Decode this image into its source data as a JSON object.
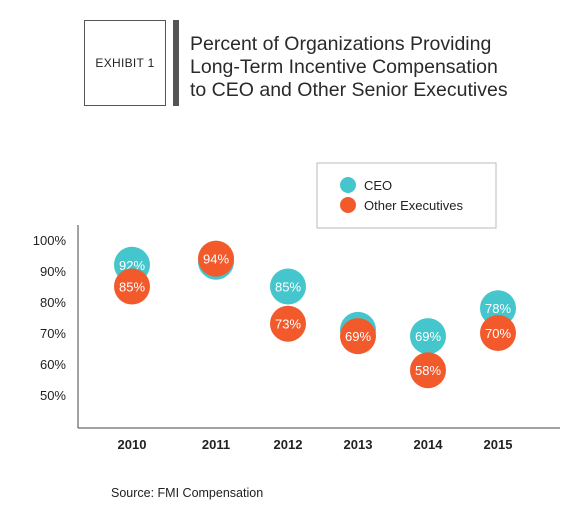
{
  "exhibit_label": "EXHIBIT 1",
  "title_lines": [
    "Percent of Organizations Providing",
    "Long-Term Incentive Compensation",
    "to CEO and Other Senior Executives"
  ],
  "source": "Source: FMI Compensation",
  "colors": {
    "ceo": "#45c6cc",
    "other": "#f25a2c",
    "axis": "#444444"
  },
  "chart_data": {
    "type": "scatter",
    "categories": [
      "2010",
      "2011",
      "2012",
      "2013",
      "2014",
      "2015"
    ],
    "series": [
      {
        "name": "CEO",
        "values": [
          92,
          93,
          85,
          71,
          69,
          78
        ],
        "labels": [
          "92%",
          "93%",
          "85%",
          "71%",
          "69%",
          "78%"
        ]
      },
      {
        "name": "Other Executives",
        "values": [
          85,
          94,
          73,
          69,
          58,
          70
        ],
        "labels": [
          "85%",
          "94%",
          "73%",
          "69%",
          "58%",
          "70%"
        ]
      }
    ],
    "yticks": [
      "100%",
      "90%",
      "80%",
      "70%",
      "60%",
      "50%"
    ],
    "ytick_values": [
      100,
      90,
      80,
      70,
      60,
      50
    ],
    "ylim": [
      40,
      100
    ],
    "grid": false,
    "legend_position": "top-right"
  }
}
